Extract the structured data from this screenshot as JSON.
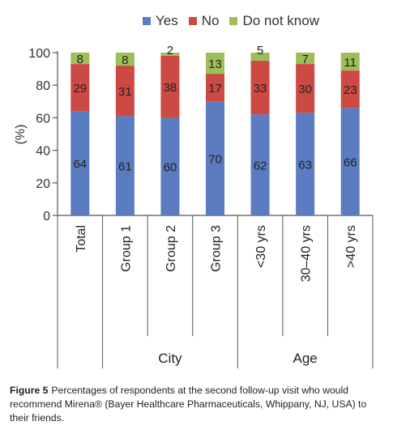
{
  "chart_data": {
    "type": "bar",
    "stacked": true,
    "categories": [
      "Total",
      "Group 1",
      "Group 2",
      "Group 3",
      "<30 yrs",
      "30–40 yrs",
      ">40 yrs"
    ],
    "category_groups": [
      {
        "label": "City",
        "categories": [
          "Group 1",
          "Group 2",
          "Group 3"
        ]
      },
      {
        "label": "Age",
        "categories": [
          "<30 yrs",
          "30–40 yrs",
          ">40 yrs"
        ]
      }
    ],
    "series": [
      {
        "name": "Yes",
        "color": "#5b7cc1",
        "values": [
          64,
          61,
          60,
          70,
          62,
          63,
          66
        ]
      },
      {
        "name": "No",
        "color": "#cc4a43",
        "values": [
          29,
          31,
          38,
          17,
          33,
          30,
          23
        ]
      },
      {
        "name": "Do not know",
        "color": "#9dbf5a",
        "values": [
          8,
          8,
          2,
          13,
          5,
          7,
          11
        ]
      }
    ],
    "ylabel": "(%)",
    "ylim": [
      0,
      100
    ],
    "yticks": [
      0,
      20,
      40,
      60,
      80,
      100
    ],
    "legend_position": "top",
    "grid": false
  },
  "caption": {
    "label": "Figure 5",
    "text": "Percentages of respondents at the second follow-up visit who would recommend Mirena® (Bayer Healthcare Pharmaceuticals, Whippany, NJ, USA) to their friends."
  }
}
